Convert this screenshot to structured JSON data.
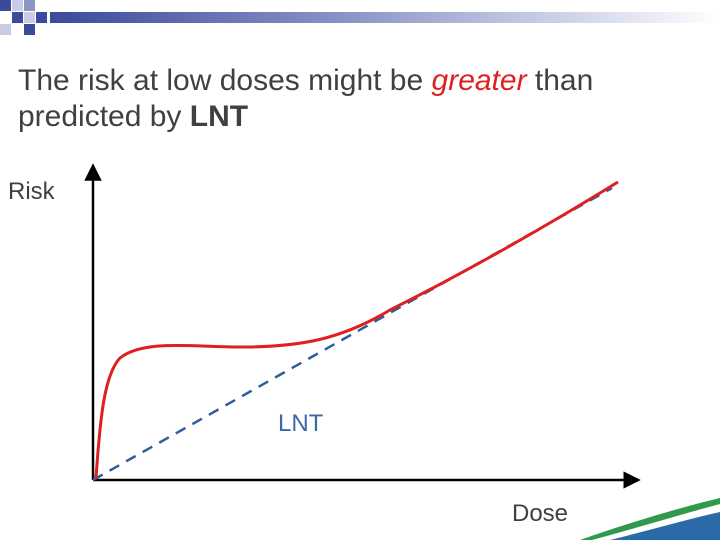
{
  "slide": {
    "title_part1": "The risk at low doses might be ",
    "title_emphasis": "greater",
    "title_part2": " than predicted by ",
    "title_strong": "LNT"
  },
  "diagram": {
    "y_axis_label": "Risk",
    "x_axis_label": "Dose",
    "lnt_label": "LNT"
  },
  "colors": {
    "title_text": "#404040",
    "emphasis": "#e02020",
    "observed_curve": "#e02020",
    "lnt_line": "#2e5e9e",
    "header_squares": "#3b4a9a",
    "swoosh_green": "#2e9a4a",
    "swoosh_blue": "#2b6aa8"
  }
}
